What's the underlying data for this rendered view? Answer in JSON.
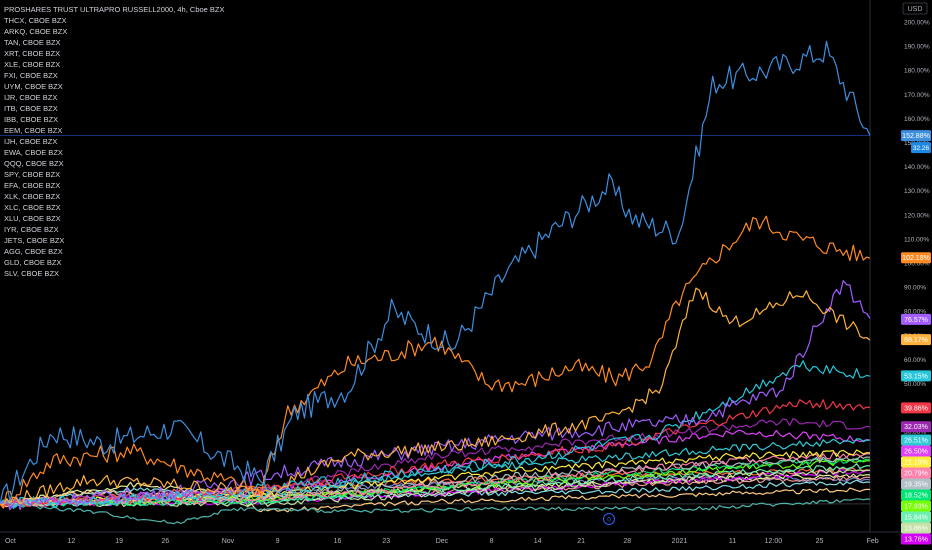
{
  "header": {
    "title": "PROSHARES TRUST ULTRAPRO RUSSELL2000, 4h, Cboe BZX",
    "symbols": [
      "THCX, CBOE BZX",
      "ARKQ, CBOE BZX",
      "TAN, CBOE BZX",
      "XRT, CBOE BZX",
      "XLE, CBOE BZX",
      "FXI, CBOE BZX",
      "UYM, CBOE BZX",
      "IJR, CBOE BZX",
      "ITB, CBOE BZX",
      "IBB, CBOE BZX",
      "EEM, CBOE BZX",
      "IJH, CBOE BZX",
      "EWA, CBOE BZX",
      "QQQ, CBOE BZX",
      "SPY, CBOE BZX",
      "EFA, CBOE BZX",
      "XLK, CBOE BZX",
      "XLC, CBOE BZX",
      "XLU, CBOE BZX",
      "IYR, CBOE BZX",
      "JETS, CBOE BZX",
      "AGG, CBOE BZX",
      "GLD, CBOE BZX",
      "SLV, CBOE BZX"
    ]
  },
  "axis": {
    "currency": "USD",
    "price_label_value": "32.26",
    "center_button_label": "0"
  },
  "chart_data": {
    "type": "line",
    "x": [
      "Oct",
      "12",
      "19",
      "26",
      "Nov",
      "9",
      "16",
      "23",
      "Dec",
      "8",
      "14",
      "21",
      "28",
      "2021",
      "11",
      "12:00",
      "25",
      "Feb"
    ],
    "ylabel": "",
    "ylim": [
      -10,
      205
    ],
    "ytick_labels": [
      "200.00%",
      "190.00%",
      "180.00%",
      "170.00%",
      "160.00%",
      "150.00%",
      "140.00%",
      "130.00%",
      "120.00%",
      "110.00%",
      "100.00%",
      "90.00%",
      "80.00%",
      "70.00%",
      "60.00%",
      "50.00%",
      "40.00%",
      "30.00%",
      "20.00%",
      "10.00%",
      "0.00%"
    ],
    "grid": false,
    "series": [
      {
        "color": "#3d8fe0",
        "end_label": "152.88%",
        "end": 152.88,
        "anchors": [
          [
            0,
            0
          ],
          [
            0.06,
            30
          ],
          [
            0.12,
            25
          ],
          [
            0.2,
            32
          ],
          [
            0.26,
            18
          ],
          [
            0.3,
            10
          ],
          [
            0.34,
            38
          ],
          [
            0.4,
            48
          ],
          [
            0.45,
            80
          ],
          [
            0.52,
            65
          ],
          [
            0.58,
            95
          ],
          [
            0.63,
            112
          ],
          [
            0.7,
            132
          ],
          [
            0.73,
            118
          ],
          [
            0.78,
            112
          ],
          [
            0.82,
            175
          ],
          [
            0.88,
            180
          ],
          [
            0.95,
            188
          ],
          [
            1,
            153
          ]
        ]
      },
      {
        "color": "#ff8a22",
        "end_label": "102.18%",
        "end": 102.18,
        "anchors": [
          [
            0,
            0
          ],
          [
            0.06,
            18
          ],
          [
            0.15,
            22
          ],
          [
            0.22,
            14
          ],
          [
            0.3,
            5
          ],
          [
            0.33,
            38
          ],
          [
            0.4,
            58
          ],
          [
            0.45,
            62
          ],
          [
            0.5,
            68
          ],
          [
            0.56,
            50
          ],
          [
            0.6,
            50
          ],
          [
            0.66,
            57
          ],
          [
            0.71,
            52
          ],
          [
            0.75,
            60
          ],
          [
            0.78,
            85
          ],
          [
            0.82,
            102
          ],
          [
            0.87,
            118
          ],
          [
            0.92,
            110
          ],
          [
            1,
            102
          ]
        ]
      },
      {
        "color": "#ffb13b",
        "end_label": "68.17%",
        "end": 68.17,
        "anchors": [
          [
            0,
            0
          ],
          [
            0.1,
            10
          ],
          [
            0.2,
            8
          ],
          [
            0.3,
            5
          ],
          [
            0.4,
            20
          ],
          [
            0.55,
            25
          ],
          [
            0.7,
            35
          ],
          [
            0.76,
            48
          ],
          [
            0.8,
            90
          ],
          [
            0.84,
            75
          ],
          [
            0.88,
            80
          ],
          [
            0.92,
            88
          ],
          [
            0.96,
            78
          ],
          [
            1,
            68
          ]
        ]
      },
      {
        "color": "#a25cff",
        "end_label": "76.57%",
        "end": 76.57,
        "anchors": [
          [
            0,
            0
          ],
          [
            0.2,
            5
          ],
          [
            0.4,
            18
          ],
          [
            0.6,
            28
          ],
          [
            0.8,
            35
          ],
          [
            0.9,
            48
          ],
          [
            0.94,
            75
          ],
          [
            0.97,
            92
          ],
          [
            1,
            77
          ]
        ]
      },
      {
        "color": "#26c6da",
        "end_label": "53.15%",
        "end": 53.15,
        "anchors": [
          [
            0,
            0
          ],
          [
            0.2,
            3
          ],
          [
            0.4,
            10
          ],
          [
            0.6,
            18
          ],
          [
            0.75,
            28
          ],
          [
            0.85,
            45
          ],
          [
            0.92,
            58
          ],
          [
            1,
            53
          ]
        ]
      },
      {
        "color": "#f23645",
        "end_label": "39.86%",
        "end": 39.86,
        "anchors": [
          [
            0,
            0
          ],
          [
            0.25,
            4
          ],
          [
            0.5,
            16
          ],
          [
            0.7,
            24
          ],
          [
            0.85,
            36
          ],
          [
            0.92,
            42
          ],
          [
            1,
            40
          ]
        ]
      },
      {
        "color": "#9c27b0",
        "end_label": "32.03%",
        "end": 32.03,
        "anchors": [
          [
            0,
            0
          ],
          [
            0.3,
            6
          ],
          [
            0.5,
            20
          ],
          [
            0.7,
            27
          ],
          [
            0.9,
            34
          ],
          [
            1,
            32
          ]
        ]
      },
      {
        "color": "#2ecad5",
        "end_label": "26.51%",
        "end": 26.51,
        "anchors": [
          [
            0,
            0
          ],
          [
            0.3,
            4
          ],
          [
            0.55,
            15
          ],
          [
            0.8,
            22
          ],
          [
            1,
            26.5
          ]
        ]
      },
      {
        "color": "#e040fb",
        "end_label": "26.50%",
        "end": 26.5,
        "anchors": [
          [
            0,
            0
          ],
          [
            0.3,
            5
          ],
          [
            0.6,
            20
          ],
          [
            0.85,
            30
          ],
          [
            1,
            26.5
          ]
        ]
      },
      {
        "color": "#ffeb3b",
        "end_label": "21.19%",
        "end": 21.19,
        "anchors": [
          [
            0,
            0
          ],
          [
            0.3,
            4
          ],
          [
            0.6,
            14
          ],
          [
            0.85,
            20
          ],
          [
            1,
            21.2
          ]
        ]
      },
      {
        "color": "#ff80ab",
        "end_label": "20.79%",
        "end": 20.79,
        "anchors": [
          [
            0,
            0
          ],
          [
            0.3,
            2
          ],
          [
            0.6,
            10
          ],
          [
            0.85,
            18
          ],
          [
            1,
            20.8
          ]
        ]
      },
      {
        "color": "#b0bec5",
        "end_label": "19.35%",
        "end": 19.35,
        "anchors": [
          [
            0,
            0
          ],
          [
            0.3,
            3
          ],
          [
            0.6,
            12
          ],
          [
            0.85,
            17
          ],
          [
            1,
            19.4
          ]
        ]
      },
      {
        "color": "#00e676",
        "end_label": "18.52%",
        "end": 18.52,
        "anchors": [
          [
            0,
            0
          ],
          [
            0.3,
            1
          ],
          [
            0.6,
            10
          ],
          [
            0.85,
            16
          ],
          [
            1,
            18.5
          ]
        ]
      },
      {
        "color": "#76ff03",
        "end_label": "17.93%",
        "end": 17.93,
        "anchors": [
          [
            0,
            0
          ],
          [
            0.3,
            2
          ],
          [
            0.6,
            9
          ],
          [
            0.85,
            15
          ],
          [
            1,
            17.9
          ]
        ]
      },
      {
        "color": "#69f0ae",
        "end_label": "15.84%",
        "end": 15.84,
        "anchors": [
          [
            0,
            0
          ],
          [
            0.3,
            1
          ],
          [
            0.6,
            8
          ],
          [
            0.85,
            13
          ],
          [
            1,
            15.8
          ]
        ]
      },
      {
        "color": "#c5e1a5",
        "end_label": "13.86%",
        "end": 13.86,
        "anchors": [
          [
            0,
            0
          ],
          [
            0.3,
            0
          ],
          [
            0.6,
            6
          ],
          [
            0.85,
            12
          ],
          [
            1,
            13.9
          ]
        ]
      },
      {
        "color": "#d500f9",
        "end_label": "13.76%",
        "end": 13.76,
        "anchors": [
          [
            0,
            0
          ],
          [
            0.3,
            1
          ],
          [
            0.6,
            6
          ],
          [
            0.85,
            11
          ],
          [
            1,
            13.8
          ]
        ]
      },
      {
        "color": "#4db6ac",
        "end": 2,
        "anchors": [
          [
            0,
            0
          ],
          [
            0.1,
            -3
          ],
          [
            0.2,
            -8
          ],
          [
            0.27,
            -2
          ],
          [
            0.4,
            -3
          ],
          [
            0.6,
            -2
          ],
          [
            0.8,
            -2
          ],
          [
            1,
            2
          ]
        ]
      },
      {
        "color": "#ffcc80",
        "end": 6,
        "anchors": [
          [
            0,
            0
          ],
          [
            0.1,
            5
          ],
          [
            0.27,
            3
          ],
          [
            0.3,
            -3
          ],
          [
            0.5,
            1
          ],
          [
            0.7,
            3
          ],
          [
            1,
            6
          ]
        ]
      },
      {
        "color": "#80deea",
        "end": 9,
        "anchors": [
          [
            0,
            0
          ],
          [
            0.15,
            6
          ],
          [
            0.3,
            2
          ],
          [
            0.5,
            4
          ],
          [
            0.7,
            5
          ],
          [
            0.9,
            8
          ],
          [
            1,
            9
          ]
        ]
      },
      {
        "color": "#ef9a9a",
        "end": 11,
        "anchors": [
          [
            0,
            0
          ],
          [
            0.2,
            2
          ],
          [
            0.35,
            4
          ],
          [
            0.6,
            6
          ],
          [
            0.8,
            9
          ],
          [
            1,
            11
          ]
        ]
      },
      {
        "color": "#e6ee9c",
        "end": 12,
        "anchors": [
          [
            0,
            0
          ],
          [
            0.15,
            8
          ],
          [
            0.3,
            3
          ],
          [
            0.55,
            7
          ],
          [
            0.8,
            10
          ],
          [
            1,
            12
          ]
        ]
      },
      {
        "color": "#7986cb",
        "end": 10,
        "anchors": [
          [
            0,
            0
          ],
          [
            0.2,
            4
          ],
          [
            0.4,
            7
          ],
          [
            0.6,
            9
          ],
          [
            0.8,
            11
          ],
          [
            1,
            10
          ]
        ]
      },
      {
        "color": "#ff7043",
        "end": 14,
        "anchors": [
          [
            0,
            0
          ],
          [
            0.2,
            5
          ],
          [
            0.45,
            9
          ],
          [
            0.7,
            12
          ],
          [
            1,
            14
          ]
        ]
      }
    ]
  }
}
